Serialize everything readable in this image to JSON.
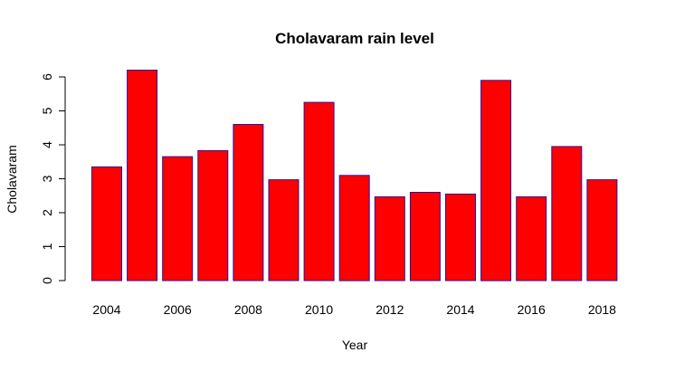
{
  "chart_data": {
    "type": "bar",
    "title": "Cholavaram rain level",
    "xlabel": "Year",
    "ylabel": "Cholavaram",
    "categories": [
      "2004",
      "2005",
      "2006",
      "2007",
      "2008",
      "2009",
      "2010",
      "2011",
      "2012",
      "2013",
      "2014",
      "2015",
      "2016",
      "2017",
      "2018"
    ],
    "x_tick_labels": [
      "2004",
      "2006",
      "2008",
      "2010",
      "2012",
      "2014",
      "2016",
      "2018"
    ],
    "values": [
      3.35,
      6.2,
      3.65,
      3.83,
      4.6,
      2.97,
      5.25,
      3.1,
      2.47,
      2.6,
      2.55,
      5.9,
      2.47,
      3.95,
      2.97
    ],
    "ylim": [
      0,
      6.2
    ],
    "y_ticks": [
      0,
      1,
      2,
      3,
      4,
      5,
      6
    ],
    "bar_fill": "#ff0000",
    "bar_border": "#2a0fa0",
    "grid": false,
    "legend": "none"
  }
}
